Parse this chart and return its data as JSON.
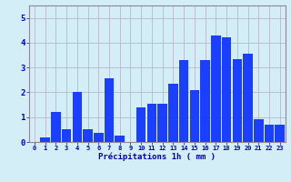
{
  "hours": [
    0,
    1,
    2,
    3,
    4,
    5,
    6,
    7,
    8,
    9,
    10,
    11,
    12,
    13,
    14,
    15,
    16,
    17,
    18,
    19,
    20,
    21,
    22,
    23
  ],
  "values": [
    0.0,
    0.2,
    1.2,
    0.5,
    2.0,
    0.5,
    0.35,
    2.55,
    0.25,
    0.0,
    1.4,
    1.55,
    1.55,
    2.35,
    3.3,
    2.1,
    3.3,
    4.3,
    4.2,
    3.35,
    3.55,
    0.9,
    0.7,
    0.7
  ],
  "bar_color": "#1a3fff",
  "bg_color": "#d4eef8",
  "grid_color": "#b8b8c8",
  "xlabel": "Précipitations 1h ( mm )",
  "xlabel_color": "#0000bb",
  "tick_color": "#0000bb",
  "ylim": [
    0,
    5.5
  ],
  "yticks": [
    0,
    1,
    2,
    3,
    4,
    5
  ],
  "spine_color": "#888899"
}
